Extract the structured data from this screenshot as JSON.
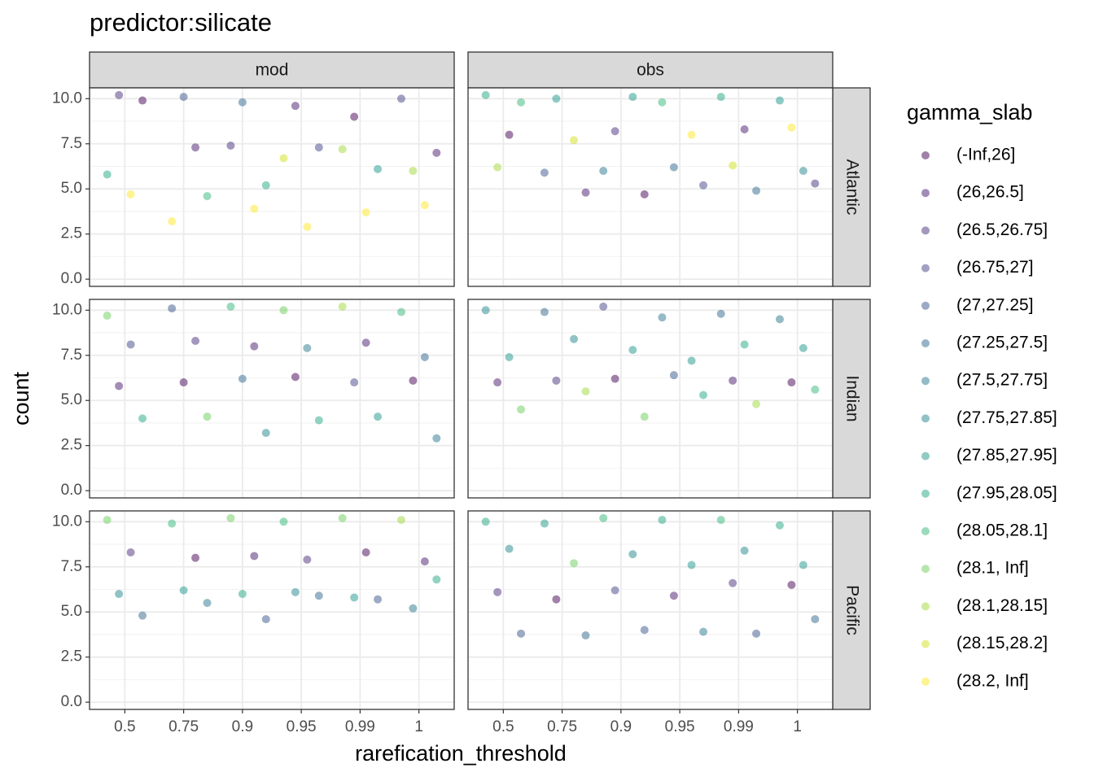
{
  "chart_data": {
    "type": "scatter",
    "title": "predictor:silicate",
    "x_label": "rarefication_threshold",
    "y_label": "count",
    "legend_title": "gamma_slab",
    "columns": [
      "mod",
      "obs"
    ],
    "rows": [
      "Atlantic",
      "Indian",
      "Pacific"
    ],
    "series": [
      {
        "name": "(-Inf,26]",
        "color": "#440154"
      },
      {
        "name": "(26,26.5]",
        "color": "#481A6C"
      },
      {
        "name": "(26.5,26.75]",
        "color": "#472F7D"
      },
      {
        "name": "(26.75,27]",
        "color": "#414487"
      },
      {
        "name": "(27,27.25]",
        "color": "#39568C"
      },
      {
        "name": "(27.25,27.5]",
        "color": "#31688E"
      },
      {
        "name": "(27.5,27.75]",
        "color": "#2A788E"
      },
      {
        "name": "(27.75,27.85]",
        "color": "#23888E"
      },
      {
        "name": "(27.85,27.95]",
        "color": "#1F988B"
      },
      {
        "name": "(27.95,28.05]",
        "color": "#22A884"
      },
      {
        "name": "(28.05,28.1]",
        "color": "#35B779"
      },
      {
        "name": "(28.1, Inf]",
        "color": "#6CCD5A"
      },
      {
        "name": "(28.1,28.15]",
        "color": "#A0DA39"
      },
      {
        "name": "(28.15,28.2]",
        "color": "#D0E11C"
      },
      {
        "name": "(28.2, Inf]",
        "color": "#FDE725"
      }
    ],
    "xlim": [
      0.4,
      6.6
    ],
    "xticks": [
      {
        "value": 1,
        "label": "0.5"
      },
      {
        "value": 2,
        "label": "0.75"
      },
      {
        "value": 3,
        "label": "0.9"
      },
      {
        "value": 4,
        "label": "0.95"
      },
      {
        "value": 5,
        "label": "0.99"
      },
      {
        "value": 6,
        "label": "1"
      }
    ],
    "ylim": [
      -0.4,
      10.6
    ],
    "yticks": [
      {
        "value": 0,
        "label": "0.0"
      },
      {
        "value": 2.5,
        "label": "2.5"
      },
      {
        "value": 5,
        "label": "5.0"
      },
      {
        "value": 7.5,
        "label": "7.5"
      },
      {
        "value": 10,
        "label": "10.0"
      }
    ],
    "panels": [
      {
        "column": 0,
        "row": 0,
        "x": [
          0.7,
          0.9,
          1.1,
          1.3,
          1.8,
          2.0,
          2.2,
          2.4,
          2.8,
          3.0,
          3.2,
          3.4,
          3.7,
          3.9,
          4.1,
          4.3,
          4.7,
          4.9,
          5.1,
          5.3,
          5.7,
          5.9,
          6.1,
          6.3
        ],
        "y": [
          5.8,
          10.2,
          4.7,
          9.9,
          3.2,
          10.1,
          7.3,
          4.6,
          7.4,
          9.8,
          3.9,
          5.2,
          6.7,
          9.6,
          2.9,
          7.3,
          7.2,
          9.0,
          3.7,
          6.1,
          10.0,
          6.0,
          4.1,
          7.0
        ],
        "group": [
          9,
          2,
          14,
          0,
          14,
          4,
          1,
          10,
          2,
          5,
          14,
          9,
          13,
          1,
          14,
          3,
          12,
          0,
          14,
          8,
          3,
          12,
          14,
          1
        ]
      },
      {
        "column": 1,
        "row": 0,
        "x": [
          0.7,
          0.9,
          1.1,
          1.3,
          1.7,
          1.9,
          2.2,
          2.4,
          2.7,
          2.9,
          3.2,
          3.4,
          3.7,
          3.9,
          4.2,
          4.4,
          4.7,
          4.9,
          5.1,
          5.3,
          5.7,
          5.9,
          6.1,
          6.3
        ],
        "y": [
          10.2,
          6.2,
          8.0,
          9.8,
          5.9,
          10.0,
          7.7,
          4.8,
          6.0,
          8.2,
          10.1,
          4.7,
          9.8,
          6.2,
          8.0,
          5.2,
          10.1,
          6.3,
          8.3,
          4.9,
          9.9,
          8.4,
          6.0,
          5.3
        ],
        "group": [
          9,
          12,
          0,
          10,
          4,
          8,
          13,
          1,
          6,
          2,
          8,
          0,
          10,
          5,
          14,
          3,
          9,
          13,
          1,
          5,
          8,
          14,
          7,
          2
        ]
      },
      {
        "column": 0,
        "row": 1,
        "x": [
          0.7,
          0.9,
          1.1,
          1.3,
          1.8,
          2.0,
          2.2,
          2.4,
          2.8,
          3.0,
          3.2,
          3.4,
          3.7,
          3.9,
          4.1,
          4.3,
          4.7,
          4.9,
          5.1,
          5.3,
          5.7,
          5.9,
          6.1,
          6.3
        ],
        "y": [
          9.7,
          5.8,
          8.1,
          4.0,
          10.1,
          6.0,
          8.3,
          4.1,
          10.2,
          6.2,
          8.0,
          3.2,
          10.0,
          6.3,
          7.9,
          3.9,
          10.2,
          6.0,
          8.2,
          4.1,
          9.9,
          6.1,
          7.4,
          2.9
        ],
        "group": [
          11,
          1,
          3,
          9,
          4,
          0,
          2,
          11,
          10,
          5,
          1,
          7,
          11,
          0,
          6,
          9,
          12,
          3,
          1,
          8,
          10,
          0,
          5,
          6
        ]
      },
      {
        "column": 1,
        "row": 1,
        "x": [
          0.7,
          0.9,
          1.1,
          1.3,
          1.7,
          1.9,
          2.2,
          2.4,
          2.7,
          2.9,
          3.2,
          3.4,
          3.7,
          3.9,
          4.2,
          4.4,
          4.7,
          4.9,
          5.1,
          5.3,
          5.7,
          5.9,
          6.1,
          6.3
        ],
        "y": [
          10.0,
          6.0,
          7.4,
          4.5,
          9.9,
          6.1,
          8.4,
          5.5,
          10.2,
          6.2,
          7.8,
          4.1,
          9.6,
          6.4,
          7.2,
          5.3,
          9.8,
          6.1,
          8.1,
          4.8,
          9.5,
          6.0,
          7.9,
          5.6
        ],
        "group": [
          7,
          1,
          8,
          11,
          5,
          2,
          7,
          12,
          3,
          0,
          8,
          11,
          6,
          4,
          8,
          9,
          5,
          1,
          9,
          12,
          6,
          0,
          8,
          10
        ]
      },
      {
        "column": 0,
        "row": 2,
        "x": [
          0.7,
          0.9,
          1.1,
          1.3,
          1.8,
          2.0,
          2.2,
          2.4,
          2.8,
          3.0,
          3.2,
          3.4,
          3.7,
          3.9,
          4.1,
          4.3,
          4.7,
          4.9,
          5.1,
          5.3,
          5.7,
          5.9,
          6.1,
          6.3
        ],
        "y": [
          10.1,
          6.0,
          8.3,
          4.8,
          9.9,
          6.2,
          8.0,
          5.5,
          10.2,
          6.0,
          8.1,
          4.6,
          10.0,
          6.1,
          7.9,
          5.9,
          10.2,
          5.8,
          8.3,
          5.7,
          10.1,
          5.2,
          7.8,
          6.8
        ],
        "group": [
          11,
          7,
          2,
          5,
          10,
          8,
          0,
          6,
          11,
          9,
          1,
          4,
          10,
          7,
          2,
          5,
          11,
          8,
          0,
          4,
          12,
          6,
          1,
          9
        ]
      },
      {
        "column": 1,
        "row": 2,
        "x": [
          0.7,
          0.9,
          1.1,
          1.3,
          1.7,
          1.9,
          2.2,
          2.4,
          2.7,
          2.9,
          3.2,
          3.4,
          3.7,
          3.9,
          4.2,
          4.4,
          4.7,
          4.9,
          5.1,
          5.3,
          5.7,
          5.9,
          6.1,
          6.3
        ],
        "y": [
          10.0,
          6.1,
          8.5,
          3.8,
          9.9,
          5.7,
          7.7,
          3.7,
          10.2,
          6.2,
          8.2,
          4.0,
          10.1,
          5.9,
          7.6,
          3.9,
          10.1,
          6.6,
          8.4,
          3.8,
          9.8,
          6.5,
          7.6,
          4.6
        ],
        "group": [
          9,
          2,
          7,
          4,
          8,
          0,
          11,
          5,
          10,
          3,
          7,
          4,
          9,
          1,
          8,
          6,
          10,
          2,
          7,
          4,
          9,
          0,
          8,
          5
        ]
      }
    ]
  }
}
